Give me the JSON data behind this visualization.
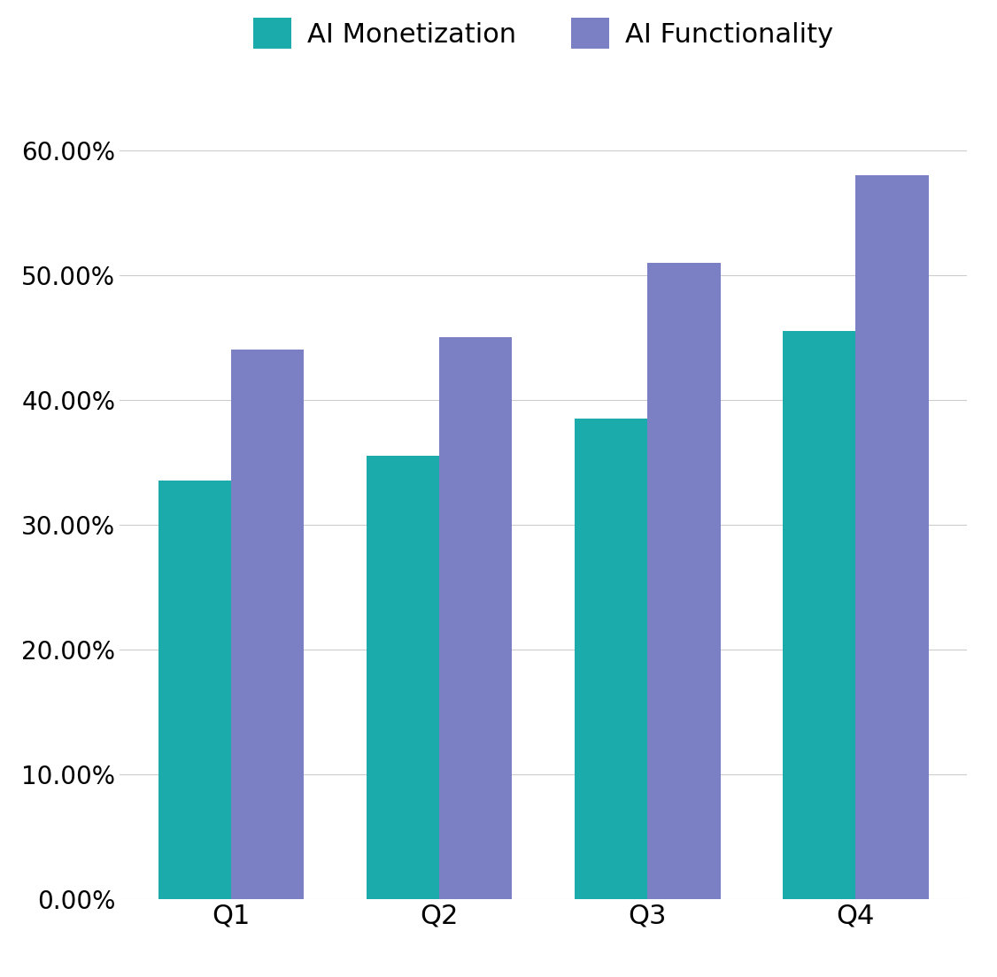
{
  "categories": [
    "Q1",
    "Q2",
    "Q3",
    "Q4"
  ],
  "monetization_values": [
    0.335,
    0.355,
    0.385,
    0.455
  ],
  "functionality_values": [
    0.44,
    0.45,
    0.51,
    0.58
  ],
  "monetization_color": "#1AABAA",
  "functionality_color": "#7B7FC4",
  "background_color": "#FFFFFF",
  "legend_labels": [
    "AI Monetization",
    "AI Functionality"
  ],
  "yticks": [
    0.0,
    0.1,
    0.2,
    0.3,
    0.4,
    0.5,
    0.6
  ],
  "ylim": [
    0,
    0.65
  ],
  "bar_width": 0.35,
  "grid_color": "#CCCCCC",
  "tick_label_fontsize": 20,
  "legend_fontsize": 22,
  "xticklabel_fontsize": 22
}
